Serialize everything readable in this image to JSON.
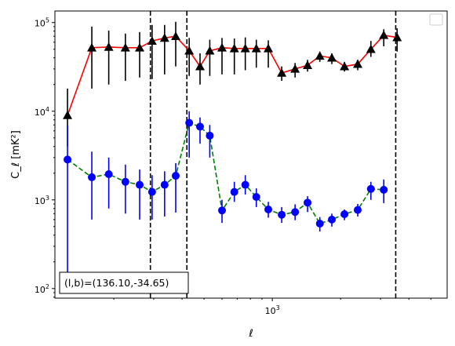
{
  "chart_data": {
    "type": "line",
    "xscale": "log",
    "yscale": "log",
    "xlim": [
      110,
      5900
    ],
    "ylim": [
      78,
      135000
    ],
    "xlabel": "ℓ",
    "ylabel": "C_ℓ  [mK²]",
    "x_ticks": [
      {
        "value": 1000,
        "base": "10",
        "exp": "3"
      }
    ],
    "y_ticks": [
      {
        "value": 100,
        "base": "10",
        "exp": "2"
      },
      {
        "value": 1000,
        "base": "10",
        "exp": "3"
      },
      {
        "value": 10000,
        "base": "10",
        "exp": "4"
      },
      {
        "value": 100000,
        "base": "10",
        "exp": "5"
      }
    ],
    "vlines": [
      290,
      420,
      3500
    ],
    "annotation": "(l,b)=(136.10,-34.65)",
    "legend": "top-right (empty)",
    "series": [
      {
        "line_color": "#ff0000",
        "marker_color": "#000000",
        "errorbar_color": "#000000",
        "marker": "triangle",
        "line_style": "solid",
        "x": [
          125,
          160,
          190,
          225,
          260,
          295,
          335,
          375,
          430,
          480,
          530,
          600,
          680,
          760,
          850,
          960,
          1100,
          1260,
          1430,
          1620,
          1830,
          2080,
          2380,
          2720,
          3100,
          3550,
          4100,
          4800
        ],
        "y": [
          9000,
          52000,
          53000,
          52000,
          52000,
          62000,
          67000,
          70000,
          48000,
          32000,
          48000,
          52000,
          51000,
          51000,
          51000,
          51000,
          27000,
          30000,
          33000,
          42000,
          40000,
          32000,
          34000,
          50000,
          72000,
          68000,
          null,
          null
        ],
        "err_lo": [
          5000,
          34000,
          33000,
          30000,
          28000,
          39000,
          41000,
          38000,
          23000,
          12000,
          23000,
          26000,
          25000,
          22000,
          20000,
          20000,
          5000,
          6000,
          5000,
          6000,
          6000,
          4000,
          5000,
          9000,
          18000,
          21000,
          null,
          null
        ],
        "err_hi": [
          9000,
          38000,
          28000,
          23000,
          26000,
          32000,
          27000,
          32000,
          19000,
          13000,
          16000,
          15000,
          15000,
          17000,
          13000,
          12000,
          5000,
          5000,
          5000,
          5000,
          5000,
          4000,
          4000,
          12000,
          12000,
          18000,
          null,
          null
        ]
      },
      {
        "line_color": "#008000",
        "marker_color": "#0000ff",
        "errorbar_color": "#0000ff",
        "marker": "circle",
        "line_style": "dashed",
        "x": [
          125,
          160,
          190,
          225,
          260,
          295,
          335,
          375,
          430,
          480,
          530,
          600,
          680,
          760,
          850,
          960,
          1100,
          1260,
          1430,
          1620,
          1830,
          2080,
          2380,
          2720,
          3100,
          3550
        ],
        "y": [
          2850,
          1800,
          1950,
          1600,
          1480,
          1230,
          1480,
          1870,
          7400,
          6700,
          5300,
          760,
          1230,
          1480,
          1080,
          780,
          680,
          730,
          930,
          540,
          600,
          690,
          770,
          1330,
          1300,
          null
        ],
        "err_lo": [
          2700,
          1200,
          1150,
          900,
          880,
          630,
          830,
          1150,
          4400,
          2400,
          2300,
          210,
          280,
          330,
          250,
          150,
          130,
          140,
          200,
          100,
          100,
          100,
          120,
          330,
          380,
          null
        ],
        "err_hi": [
          4150,
          1700,
          1050,
          900,
          720,
          670,
          620,
          730,
          2600,
          1800,
          1700,
          240,
          370,
          420,
          270,
          170,
          150,
          160,
          170,
          100,
          100,
          90,
          130,
          270,
          400,
          null
        ]
      }
    ]
  }
}
